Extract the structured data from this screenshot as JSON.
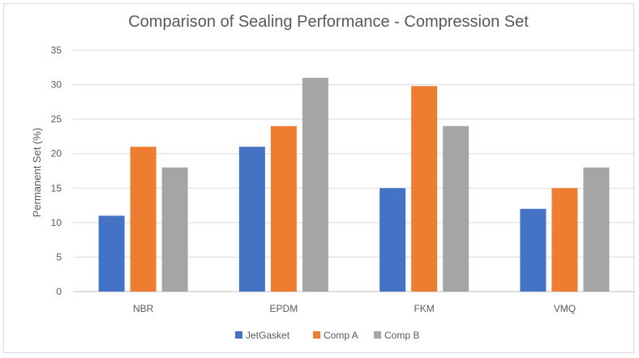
{
  "chart_data": {
    "type": "bar",
    "title": "Comparison of Sealing Performance - Compression Set",
    "xlabel": "",
    "ylabel": "Permanent Set (%)",
    "categories": [
      "NBR",
      "EPDM",
      "FKM",
      "VMQ"
    ],
    "ylim": [
      0,
      35
    ],
    "yticks": [
      0,
      5,
      10,
      15,
      20,
      25,
      30,
      35
    ],
    "grid": true,
    "legend_position": "bottom",
    "series": [
      {
        "name": "JetGasket",
        "color": "#4472c4",
        "values": [
          11,
          21,
          15,
          12
        ]
      },
      {
        "name": "Comp A",
        "color": "#ed7d31",
        "values": [
          21,
          24,
          29.8,
          15
        ]
      },
      {
        "name": "Comp B",
        "color": "#a5a5a5",
        "values": [
          18,
          31,
          24,
          18
        ]
      }
    ]
  }
}
